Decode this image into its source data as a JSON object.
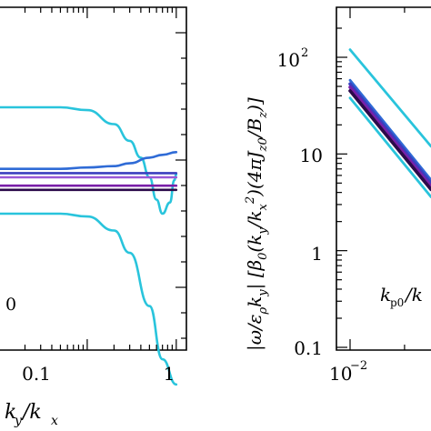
{
  "chart_data": [
    {
      "type": "line",
      "xscale": "log",
      "xlim": [
        0.01,
        1.3
      ],
      "ylim_fraction_note": "",
      "x_tick_labels": [
        "0.1",
        "1"
      ],
      "x_ticks": [
        0.1,
        1
      ],
      "xlabel": "k_y/k_x",
      "ylabel": "",
      "inner_label": "0",
      "series": [
        {
          "color": "#29c4dc",
          "x": [
            0.01,
            0.02,
            0.05,
            0.1,
            0.2,
            0.3,
            0.5,
            0.7,
            1.0
          ],
          "values": [
            0.8,
            0.8,
            0.8,
            0.79,
            0.74,
            0.66,
            0.47,
            0.28,
            0.19
          ]
        },
        {
          "color": "#29c4dc",
          "x": [
            0.01,
            0.05,
            0.1,
            0.2,
            0.3,
            0.4,
            0.5,
            0.6,
            0.7,
            0.85,
            0.95,
            1.0
          ],
          "values": [
            1.18,
            1.18,
            1.17,
            1.12,
            1.06,
            1.0,
            0.93,
            0.85,
            0.8,
            0.84,
            0.92,
            0.94
          ]
        },
        {
          "color": "#2f6bd6",
          "x": [
            0.01,
            0.05,
            0.1,
            0.2,
            0.3,
            0.5,
            0.7,
            1.0
          ],
          "values": [
            0.96,
            0.96,
            0.965,
            0.97,
            0.98,
            1.0,
            1.01,
            1.02
          ]
        },
        {
          "color": "#3a3fbf",
          "x": [
            0.01,
            1.0
          ],
          "values": [
            0.945,
            0.945
          ]
        },
        {
          "color": "#9b59d6",
          "x": [
            0.01,
            1.0
          ],
          "values": [
            0.93,
            0.93
          ]
        },
        {
          "color": "#7a1fa8",
          "x": [
            0.01,
            1.0
          ],
          "values": [
            0.9,
            0.9
          ]
        },
        {
          "color": "#2b0a4a",
          "x": [
            0.01,
            1.0
          ],
          "values": [
            0.885,
            0.885
          ]
        }
      ]
    },
    {
      "type": "line",
      "xscale": "log",
      "yscale": "log",
      "xlim": [
        0.01,
        0.028
      ],
      "ylim": [
        0.1,
        200
      ],
      "x_tick_labels": [
        "10⁻²"
      ],
      "y_tick_labels": [
        "0.1",
        "1",
        "10",
        "10²"
      ],
      "ylabel": "|ω/ε_ρ k_y|   [β₀(k_y/k_x²)(4πJ_z0/B_z)]",
      "inner_label": "k_p0/k",
      "series": [
        {
          "color": "#29c4dc",
          "x": [
            0.01,
            0.028
          ],
          "values": [
            120,
            12
          ]
        },
        {
          "color": "#2f6bd6",
          "x": [
            0.01,
            0.028
          ],
          "values": [
            58,
            5.4
          ]
        },
        {
          "color": "#3a3fbf",
          "x": [
            0.01,
            0.028
          ],
          "values": [
            53,
            5.0
          ]
        },
        {
          "color": "#7a1fa8",
          "x": [
            0.01,
            0.028
          ],
          "values": [
            49,
            4.6
          ]
        },
        {
          "color": "#2b0a4a",
          "x": [
            0.01,
            0.028
          ],
          "values": [
            45,
            4.3
          ]
        },
        {
          "color": "#29c4dc",
          "x": [
            0.01,
            0.028
          ],
          "values": [
            38,
            3.6
          ]
        }
      ]
    }
  ],
  "labels": {
    "left_xlabel_y": "y",
    "left_xlabel_slash": "/k",
    "left_xlabel_x": "x",
    "left_tick_01": "0.1",
    "left_tick_1": "1",
    "left_inner": "0",
    "right_ytick_01": "0.1",
    "right_ytick_1": "1",
    "right_ytick_10": "10",
    "right_ytick_100": "10",
    "right_ytick_100_exp": "2",
    "right_xtick": "10",
    "right_xtick_exp": "−2",
    "right_inner_k": "k",
    "right_inner_sub": "p0",
    "right_inner_rest": "/k",
    "ylabel_part1": "|ω/ε",
    "ylabel_part2": "ρ",
    "ylabel_part3": "k",
    "ylabel_part4": "y",
    "ylabel_part5": "|   [β",
    "ylabel_part6": "0",
    "ylabel_part7": "(k",
    "ylabel_part8": "y",
    "ylabel_part9": "/k",
    "ylabel_part10": "x",
    "ylabel_part11": "2",
    "ylabel_part12": ")(4πJ",
    "ylabel_part13": "z0",
    "ylabel_part14": "/B",
    "ylabel_part15": "z",
    "ylabel_part16": ")]"
  }
}
